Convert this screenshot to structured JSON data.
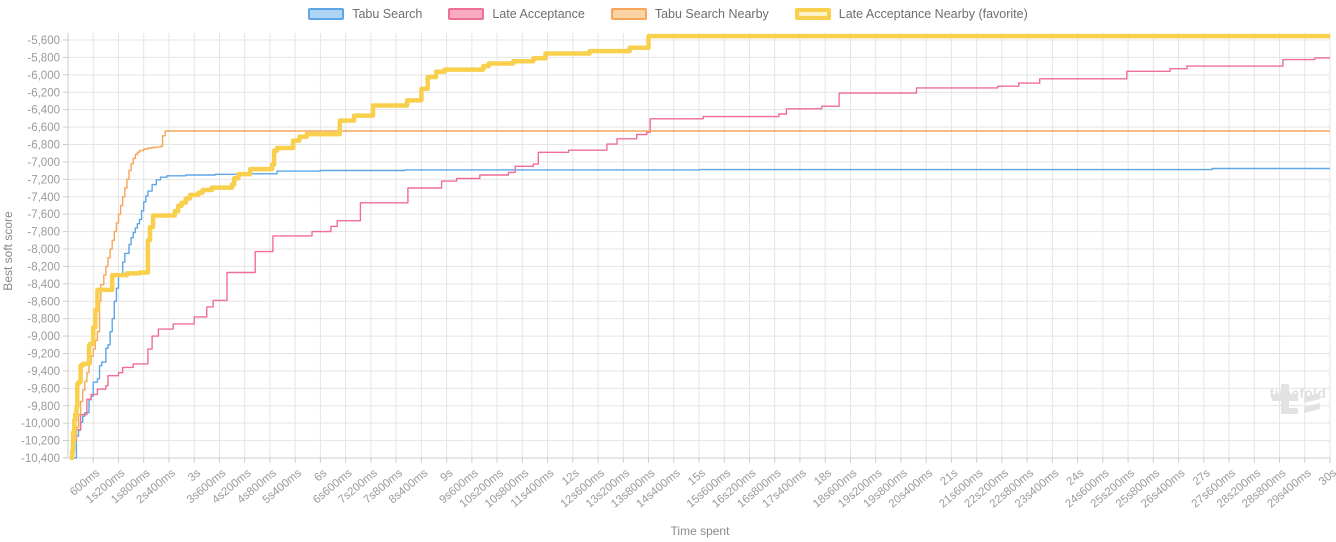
{
  "legend": [
    {
      "label": "Tabu Search",
      "stroke": "#5ea6e6",
      "fill": "#aed5f3",
      "thick": false
    },
    {
      "label": "Late Acceptance",
      "stroke": "#ef6f94",
      "fill": "#f7abc2",
      "thick": false
    },
    {
      "label": "Tabu Search Nearby",
      "stroke": "#f7a558",
      "fill": "#fbd2a3",
      "thick": false
    },
    {
      "label": "Late Acceptance Nearby (favorite)",
      "stroke": "#f8d04e",
      "fill": "#fdf2ca",
      "thick": true
    }
  ],
  "chart_data": {
    "type": "line",
    "step": true,
    "title": "",
    "xlabel": "Time spent",
    "ylabel": "Best soft score",
    "xlim_ms": [
      0,
      30000
    ],
    "ylim": [
      -10400,
      -5600
    ],
    "y_tick_step": 200,
    "x_tick_step_ms": 600,
    "grid": true,
    "legend_position": "top",
    "x_tick_labels": [
      "600ms",
      "1s200ms",
      "1s800ms",
      "2s400ms",
      "3s",
      "3s600ms",
      "4s200ms",
      "4s800ms",
      "5s400ms",
      "6s",
      "6s600ms",
      "7s200ms",
      "7s800ms",
      "8s400ms",
      "9s",
      "9s600ms",
      "10s200ms",
      "10s800ms",
      "11s400ms",
      "12s",
      "12s600ms",
      "13s200ms",
      "13s800ms",
      "14s400ms",
      "15s",
      "15s600ms",
      "16s200ms",
      "16s800ms",
      "17s400ms",
      "18s",
      "18s600ms",
      "19s200ms",
      "19s800ms",
      "20s400ms",
      "21s",
      "21s600ms",
      "22s200ms",
      "22s800ms",
      "23s400ms",
      "24s",
      "24s600ms",
      "25s200ms",
      "25s800ms",
      "26s400ms",
      "27s",
      "27s600ms",
      "28s200ms",
      "28s800ms",
      "29s400ms",
      "30s"
    ],
    "y_tick_labels": [
      "-5,600",
      "-5,800",
      "-6,000",
      "-6,200",
      "-6,400",
      "-6,600",
      "-6,800",
      "-7,000",
      "-7,200",
      "-7,400",
      "-7,600",
      "-7,800",
      "-8,000",
      "-8,200",
      "-8,400",
      "-8,600",
      "-8,800",
      "-9,000",
      "-9,200",
      "-9,400",
      "-9,600",
      "-9,800",
      "-10,000",
      "-10,200",
      "-10,400"
    ],
    "series": [
      {
        "name": "Tabu Search",
        "color": "#5ea6e6",
        "width": 1.4,
        "points": [
          [
            120,
            -10400
          ],
          [
            200,
            -10150
          ],
          [
            250,
            -10080
          ],
          [
            300,
            -9990
          ],
          [
            350,
            -9920
          ],
          [
            400,
            -9880
          ],
          [
            500,
            -9730
          ],
          [
            550,
            -9690
          ],
          [
            600,
            -9530
          ],
          [
            700,
            -9490
          ],
          [
            750,
            -9340
          ],
          [
            800,
            -9300
          ],
          [
            900,
            -9140
          ],
          [
            950,
            -9100
          ],
          [
            1000,
            -8950
          ],
          [
            1050,
            -8800
          ],
          [
            1100,
            -8600
          ],
          [
            1150,
            -8450
          ],
          [
            1200,
            -8300
          ],
          [
            1300,
            -8150
          ],
          [
            1350,
            -8050
          ],
          [
            1450,
            -7950
          ],
          [
            1500,
            -7870
          ],
          [
            1550,
            -7810
          ],
          [
            1600,
            -7760
          ],
          [
            1650,
            -7710
          ],
          [
            1700,
            -7660
          ],
          [
            1750,
            -7560
          ],
          [
            1800,
            -7460
          ],
          [
            1850,
            -7390
          ],
          [
            1900,
            -7335
          ],
          [
            2000,
            -7260
          ],
          [
            2100,
            -7205
          ],
          [
            2200,
            -7175
          ],
          [
            2350,
            -7160
          ],
          [
            2800,
            -7150
          ],
          [
            3500,
            -7142
          ],
          [
            4100,
            -7136
          ],
          [
            4970,
            -7105
          ],
          [
            6000,
            -7098
          ],
          [
            8000,
            -7092
          ],
          [
            15000,
            -7088
          ],
          [
            27200,
            -7076
          ],
          [
            30000,
            -7076
          ]
        ]
      },
      {
        "name": "Late Acceptance",
        "color": "#ef6f94",
        "width": 1.4,
        "points": [
          [
            40,
            -10400
          ],
          [
            100,
            -10230
          ],
          [
            150,
            -10110
          ],
          [
            200,
            -10075
          ],
          [
            300,
            -9900
          ],
          [
            450,
            -9725
          ],
          [
            550,
            -9670
          ],
          [
            700,
            -9610
          ],
          [
            900,
            -9570
          ],
          [
            950,
            -9455
          ],
          [
            1200,
            -9420
          ],
          [
            1300,
            -9360
          ],
          [
            1550,
            -9320
          ],
          [
            1900,
            -9150
          ],
          [
            2000,
            -9000
          ],
          [
            2150,
            -8920
          ],
          [
            2500,
            -8860
          ],
          [
            3000,
            -8780
          ],
          [
            3300,
            -8665
          ],
          [
            3450,
            -8590
          ],
          [
            3780,
            -8270
          ],
          [
            4450,
            -8030
          ],
          [
            4870,
            -7850
          ],
          [
            5800,
            -7800
          ],
          [
            6250,
            -7740
          ],
          [
            6400,
            -7675
          ],
          [
            6950,
            -7470
          ],
          [
            8080,
            -7300
          ],
          [
            8880,
            -7220
          ],
          [
            9240,
            -7190
          ],
          [
            9790,
            -7150
          ],
          [
            10470,
            -7120
          ],
          [
            10630,
            -7050
          ],
          [
            11060,
            -7025
          ],
          [
            11180,
            -6890
          ],
          [
            11900,
            -6865
          ],
          [
            12810,
            -6795
          ],
          [
            13050,
            -6735
          ],
          [
            13520,
            -6685
          ],
          [
            13760,
            -6660
          ],
          [
            13840,
            -6505
          ],
          [
            15100,
            -6480
          ],
          [
            16900,
            -6450
          ],
          [
            17080,
            -6390
          ],
          [
            17920,
            -6360
          ],
          [
            18330,
            -6210
          ],
          [
            20170,
            -6150
          ],
          [
            22100,
            -6130
          ],
          [
            22600,
            -6095
          ],
          [
            23100,
            -6045
          ],
          [
            25170,
            -5960
          ],
          [
            26200,
            -5930
          ],
          [
            26600,
            -5900
          ],
          [
            28880,
            -5825
          ],
          [
            29640,
            -5805
          ],
          [
            30000,
            -5805
          ]
        ]
      },
      {
        "name": "Tabu Search Nearby",
        "color": "#f7a558",
        "width": 1.4,
        "points": [
          [
            50,
            -10400
          ],
          [
            100,
            -10300
          ],
          [
            150,
            -10200
          ],
          [
            200,
            -10050
          ],
          [
            250,
            -9900
          ],
          [
            300,
            -9750
          ],
          [
            350,
            -9620
          ],
          [
            400,
            -9520
          ],
          [
            450,
            -9420
          ],
          [
            500,
            -9320
          ],
          [
            550,
            -9230
          ],
          [
            600,
            -9150
          ],
          [
            650,
            -9050
          ],
          [
            700,
            -8950
          ],
          [
            750,
            -8600
          ],
          [
            780,
            -8410
          ],
          [
            850,
            -8300
          ],
          [
            900,
            -8200
          ],
          [
            950,
            -8100
          ],
          [
            1000,
            -8000
          ],
          [
            1050,
            -7900
          ],
          [
            1100,
            -7800
          ],
          [
            1150,
            -7700
          ],
          [
            1200,
            -7600
          ],
          [
            1250,
            -7500
          ],
          [
            1300,
            -7400
          ],
          [
            1350,
            -7300
          ],
          [
            1400,
            -7200
          ],
          [
            1450,
            -7100
          ],
          [
            1500,
            -7020
          ],
          [
            1550,
            -6960
          ],
          [
            1600,
            -6915
          ],
          [
            1650,
            -6890
          ],
          [
            1700,
            -6870
          ],
          [
            1800,
            -6852
          ],
          [
            1900,
            -6840
          ],
          [
            2000,
            -6835
          ],
          [
            2100,
            -6830
          ],
          [
            2200,
            -6820
          ],
          [
            2250,
            -6700
          ],
          [
            2310,
            -6645
          ],
          [
            30000,
            -6645
          ]
        ]
      },
      {
        "name": "Late Acceptance Nearby (favorite)",
        "color": "#f8d04e",
        "width": 4.5,
        "points": [
          [
            50,
            -10400
          ],
          [
            100,
            -10320
          ],
          [
            120,
            -10110
          ],
          [
            150,
            -9965
          ],
          [
            170,
            -9900
          ],
          [
            200,
            -9820
          ],
          [
            220,
            -9550
          ],
          [
            250,
            -9530
          ],
          [
            300,
            -9340
          ],
          [
            350,
            -9320
          ],
          [
            500,
            -9110
          ],
          [
            520,
            -9090
          ],
          [
            600,
            -8900
          ],
          [
            650,
            -8700
          ],
          [
            700,
            -8470
          ],
          [
            1050,
            -8300
          ],
          [
            1400,
            -8280
          ],
          [
            1700,
            -8270
          ],
          [
            1900,
            -7900
          ],
          [
            1950,
            -7750
          ],
          [
            2020,
            -7615
          ],
          [
            2540,
            -7565
          ],
          [
            2620,
            -7505
          ],
          [
            2700,
            -7468
          ],
          [
            2800,
            -7420
          ],
          [
            2900,
            -7380
          ],
          [
            3100,
            -7352
          ],
          [
            3200,
            -7322
          ],
          [
            3420,
            -7295
          ],
          [
            3900,
            -7258
          ],
          [
            3950,
            -7188
          ],
          [
            4050,
            -7140
          ],
          [
            4330,
            -7082
          ],
          [
            4850,
            -7032
          ],
          [
            4900,
            -6870
          ],
          [
            4970,
            -6840
          ],
          [
            5350,
            -6755
          ],
          [
            5500,
            -6710
          ],
          [
            5680,
            -6680
          ],
          [
            6460,
            -6525
          ],
          [
            6800,
            -6468
          ],
          [
            7250,
            -6352
          ],
          [
            8060,
            -6294
          ],
          [
            8400,
            -6160
          ],
          [
            8550,
            -6025
          ],
          [
            8750,
            -5965
          ],
          [
            8950,
            -5940
          ],
          [
            9870,
            -5900
          ],
          [
            10000,
            -5870
          ],
          [
            10580,
            -5845
          ],
          [
            11060,
            -5810
          ],
          [
            11350,
            -5755
          ],
          [
            12400,
            -5727
          ],
          [
            13350,
            -5690
          ],
          [
            13800,
            -5555
          ],
          [
            30000,
            -5555
          ]
        ]
      }
    ]
  },
  "colors": {
    "grid": "#e5e5e5",
    "axis": "#cccccc",
    "tick_text": "#9a9a9a",
    "axis_title": "#8a8a8a",
    "watermark": "#e2e2e2"
  },
  "watermark": {
    "text": "timefold"
  }
}
